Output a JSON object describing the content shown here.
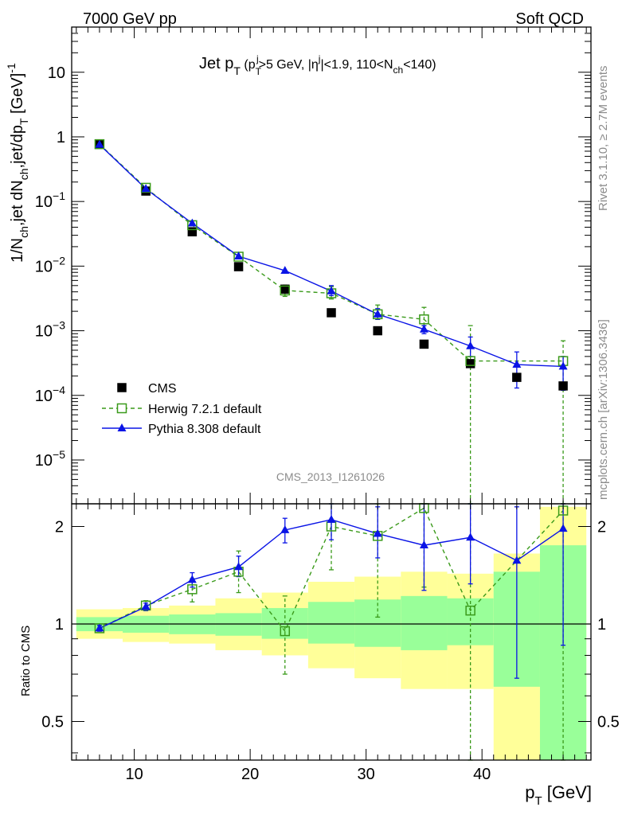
{
  "header": {
    "left": "7000 GeV pp",
    "right": "Soft QCD"
  },
  "title": {
    "main": "Jet p",
    "sub_T": "T",
    "detail_a": " (p",
    "detail_sub_T": "T",
    "detail_sup_j": "j",
    "detail_b": ">5 GeV, |η",
    "detail_sup_j2": "j",
    "detail_c": "|<1.9, 110<N",
    "detail_sub_ch": "ch",
    "detail_d": "<140)"
  },
  "side_labels": {
    "rivet": "Rivet 3.1.10, ≥ 2.7M events",
    "mcplots": "mcplots.cern.ch [arXiv:1306.3436]"
  },
  "watermark": "CMS_2013_I1261026",
  "y_axis_label": {
    "p1": "1/N",
    "s1": "ch",
    "p2": ",jet dN",
    "s2": "ch",
    "p3": ",jet/dp",
    "s3": "T",
    "p4": " [GeV]",
    "sup": "-1"
  },
  "ratio_ylabel": "Ratio to CMS",
  "x_axis_label": {
    "main": "p",
    "sub": "T",
    "unit": " [GeV]"
  },
  "legend": [
    {
      "label": "CMS",
      "color": "#000000",
      "marker": "square-filled"
    },
    {
      "label": "Herwig 7.2.1 default",
      "color": "#3a9a1a",
      "marker": "square-open",
      "dash": true
    },
    {
      "label": "Pythia 8.308 default",
      "color": "#0a14e6",
      "marker": "triangle"
    }
  ],
  "main_ticks": {
    "major": [
      {
        "v": 10,
        "m": "10"
      },
      {
        "v": 1,
        "m": "1"
      },
      {
        "v": 0.1,
        "m": "10",
        "e": "−1"
      },
      {
        "v": 0.01,
        "m": "10",
        "e": "−2"
      },
      {
        "v": 0.001,
        "m": "10",
        "e": "−3"
      },
      {
        "v": 0.0001,
        "m": "10",
        "e": "−4"
      },
      {
        "v": 1e-05,
        "m": "10",
        "e": "−5"
      }
    ]
  },
  "ratio_ticks": [
    {
      "v": 0.5,
      "label": "0.5"
    },
    {
      "v": 1,
      "label": "1"
    },
    {
      "v": 2,
      "label": "2"
    }
  ],
  "x_ticks": [
    {
      "v": 10,
      "label": "10"
    },
    {
      "v": 20,
      "label": "20"
    },
    {
      "v": 30,
      "label": "30"
    },
    {
      "v": 40,
      "label": "40"
    }
  ],
  "chart_data": {
    "type": "scatter",
    "xlim": [
      4.6,
      49.4
    ],
    "main_ylim": [
      2.1e-06,
      50
    ],
    "main_yscale": "log",
    "ratio_ylim": [
      0.38,
      2.35
    ],
    "ratio_yscale": "log",
    "bin_edges": [
      5,
      9,
      13,
      17,
      21,
      25,
      29,
      33,
      37,
      41,
      45,
      49
    ],
    "x": [
      7,
      11,
      15,
      19,
      23,
      27,
      31,
      35,
      39,
      43,
      47
    ],
    "series": [
      {
        "name": "CMS",
        "values": [
          0.78,
          0.145,
          0.034,
          0.0098,
          0.0044,
          0.0019,
          0.001,
          0.00062,
          0.00031,
          0.00019,
          0.00014
        ],
        "band_green": [
          [
            0.95,
            1.05
          ],
          [
            0.94,
            1.06
          ],
          [
            0.93,
            1.07
          ],
          [
            0.92,
            1.08
          ],
          [
            0.9,
            1.12
          ],
          [
            0.87,
            1.17
          ],
          [
            0.85,
            1.19
          ],
          [
            0.83,
            1.22
          ],
          [
            0.86,
            1.2
          ],
          [
            0.64,
            1.45
          ],
          [
            0.3,
            1.75
          ]
        ],
        "band_yellow": [
          [
            0.9,
            1.11
          ],
          [
            0.88,
            1.12
          ],
          [
            0.87,
            1.14
          ],
          [
            0.83,
            1.2
          ],
          [
            0.8,
            1.25
          ],
          [
            0.73,
            1.35
          ],
          [
            0.68,
            1.4
          ],
          [
            0.63,
            1.45
          ],
          [
            0.63,
            1.43
          ],
          [
            0.3,
            1.65
          ],
          [
            0.3,
            2.3
          ]
        ]
      },
      {
        "name": "Herwig 7.2.1 default",
        "values": [
          0.77,
          0.163,
          0.043,
          0.014,
          0.0042,
          0.0038,
          0.0018,
          0.0015,
          0.00034,
          null,
          0.00034
        ],
        "ratio": [
          0.97,
          1.14,
          1.28,
          1.45,
          0.95,
          2.0,
          1.87,
          2.28,
          1.1,
          null,
          2.24
        ],
        "ratio_err": [
          [
            0.95,
            0.99
          ],
          [
            1.1,
            1.18
          ],
          [
            1.17,
            1.38
          ],
          [
            1.25,
            1.68
          ],
          [
            0.7,
            1.22
          ],
          [
            1.47,
            2.4
          ],
          [
            1.05,
            2.5
          ],
          [
            1.3,
            2.5
          ],
          [
            0.3,
            2.5
          ],
          null,
          [
            0.3,
            2.5
          ]
        ]
      },
      {
        "name": "Pythia 8.308 default",
        "values": [
          0.76,
          0.157,
          0.046,
          0.0142,
          0.0085,
          0.0041,
          0.0018,
          0.00105,
          0.00058,
          0.0003,
          0.00028
        ],
        "ratio": [
          0.97,
          1.13,
          1.37,
          1.5,
          1.95,
          2.1,
          1.9,
          1.75,
          1.85,
          1.57,
          1.97
        ],
        "ratio_err": [
          [
            0.95,
            0.99
          ],
          [
            1.1,
            1.16
          ],
          [
            1.3,
            1.44
          ],
          [
            1.4,
            1.62
          ],
          [
            1.78,
            2.12
          ],
          [
            1.82,
            2.4
          ],
          [
            1.6,
            2.3
          ],
          [
            1.27,
            2.4
          ],
          [
            1.33,
            2.5
          ],
          [
            0.68,
            2.3
          ],
          [
            0.86,
            2.4
          ]
        ]
      }
    ]
  }
}
